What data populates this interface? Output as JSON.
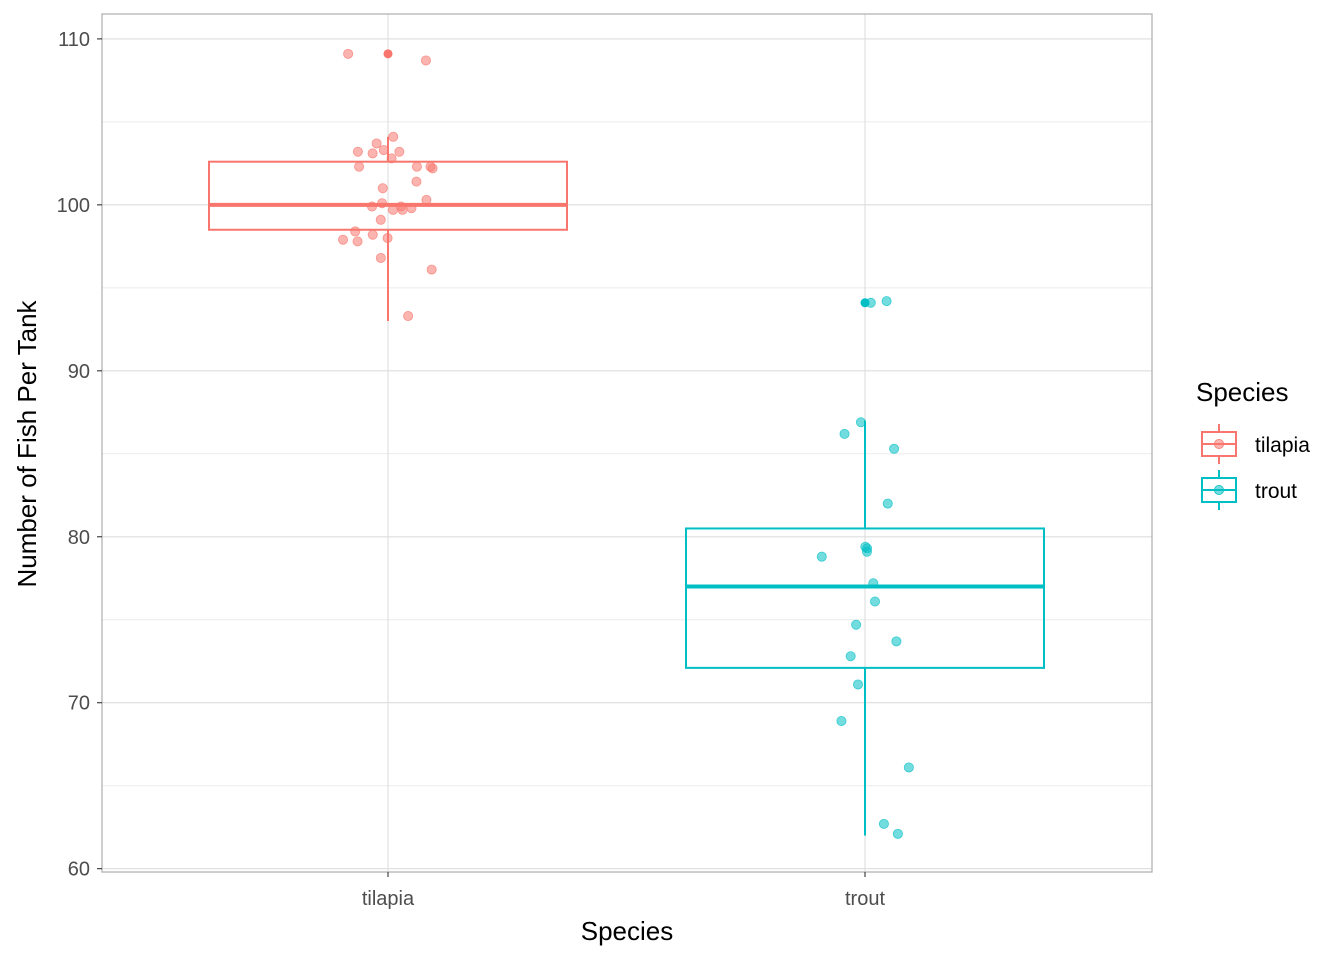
{
  "chart_data": {
    "type": "boxplot",
    "xlabel": "Species",
    "ylabel": "Number of Fish Per Tank",
    "ylim": [
      59.8,
      111.5
    ],
    "yticks": [
      60,
      70,
      80,
      90,
      100,
      110
    ],
    "categories": [
      "tilapia",
      "trout"
    ],
    "grid": true,
    "legend": {
      "title": "Species",
      "position": "right",
      "entries": [
        "tilapia",
        "trout"
      ]
    },
    "series": [
      {
        "name": "tilapia",
        "color": "#F8766D",
        "box": {
          "lower_whisker": 93.0,
          "q1": 98.5,
          "median": 100.0,
          "q3": 102.6,
          "upper_whisker": 104.1
        },
        "outliers": [
          109.1
        ],
        "points": [
          108.7,
          109.1,
          104.1,
          103.7,
          103.3,
          103.2,
          103.2,
          103.1,
          102.8,
          102.3,
          102.3,
          102.3,
          102.2,
          101.4,
          101.0,
          100.3,
          100.1,
          99.9,
          99.9,
          99.8,
          99.7,
          99.7,
          99.1,
          98.4,
          98.2,
          98.0,
          97.9,
          97.8,
          96.8,
          96.1,
          93.3
        ]
      },
      {
        "name": "trout",
        "color": "#00BFC4",
        "box": {
          "lower_whisker": 62.0,
          "q1": 72.1,
          "median": 77.0,
          "q3": 80.5,
          "upper_whisker": 87.0
        },
        "outliers": [
          94.1
        ],
        "points": [
          94.2,
          94.1,
          86.9,
          86.2,
          85.3,
          82.0,
          79.4,
          79.3,
          79.1,
          78.8,
          77.2,
          76.1,
          74.7,
          73.7,
          72.8,
          71.1,
          68.9,
          66.1,
          62.7,
          62.1
        ]
      }
    ]
  }
}
